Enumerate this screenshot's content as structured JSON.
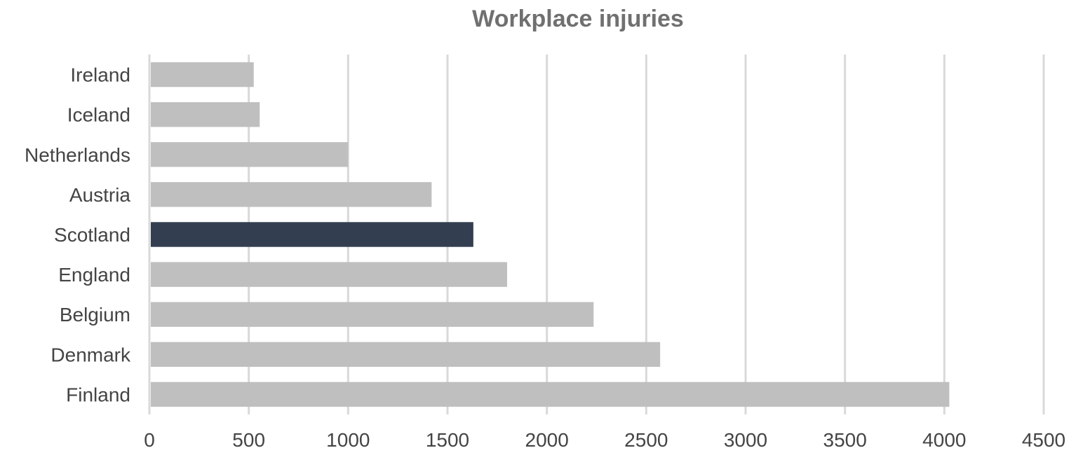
{
  "chart_data": {
    "type": "bar",
    "orientation": "horizontal",
    "title": "Workplace injuries",
    "xlabel": "",
    "ylabel": "",
    "categories": [
      "Ireland",
      "Iceland",
      "Netherlands",
      "Austria",
      "Scotland",
      "England",
      "Belgium",
      "Denmark",
      "Finland"
    ],
    "values": [
      525,
      555,
      1000,
      1420,
      1630,
      1800,
      2235,
      2570,
      4025
    ],
    "highlight": "Scotland",
    "xlim": [
      0,
      4500
    ],
    "ticks": [
      "0",
      "500",
      "1000",
      "1500",
      "2000",
      "2500",
      "3000",
      "3500",
      "4000",
      "4500"
    ],
    "grid": true,
    "legend": "none",
    "colors": {
      "bar": "#bfbfbf",
      "highlight": "#333f50",
      "grid": "#d9d9d9",
      "title": "#707070",
      "text": "#444444"
    }
  }
}
